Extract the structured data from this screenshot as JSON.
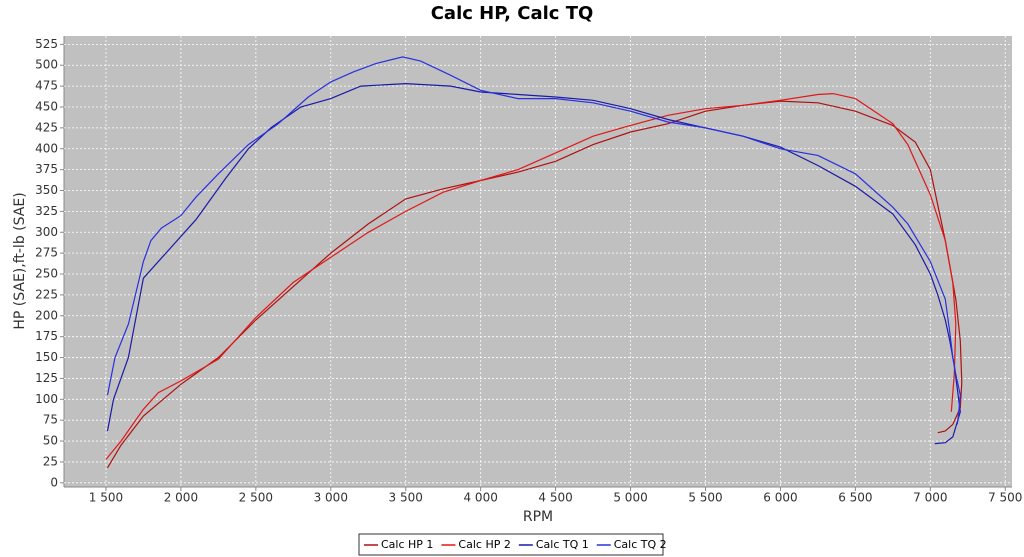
{
  "chart_data": {
    "type": "line",
    "title": "Calc HP, Calc TQ",
    "x_label": "RPM",
    "y_label": "HP (SAE),ft-lb (SAE)",
    "xlim": [
      1220,
      7545
    ],
    "ylim": [
      -5,
      535
    ],
    "grid": true,
    "xticks": [
      {
        "value": 1500,
        "label": "1 500"
      },
      {
        "value": 2000,
        "label": "2 000"
      },
      {
        "value": 2500,
        "label": "2 500"
      },
      {
        "value": 3000,
        "label": "3 000"
      },
      {
        "value": 3500,
        "label": "3 500"
      },
      {
        "value": 4000,
        "label": "4 000"
      },
      {
        "value": 4500,
        "label": "4 500"
      },
      {
        "value": 5000,
        "label": "5 000"
      },
      {
        "value": 5500,
        "label": "5 500"
      },
      {
        "value": 6000,
        "label": "6 000"
      },
      {
        "value": 6500,
        "label": "6 500"
      },
      {
        "value": 7000,
        "label": "7 000"
      },
      {
        "value": 7500,
        "label": "7 500"
      }
    ],
    "yticks": [
      0,
      25,
      50,
      75,
      100,
      125,
      150,
      175,
      200,
      225,
      250,
      275,
      300,
      325,
      350,
      375,
      400,
      425,
      450,
      475,
      500,
      525
    ],
    "series": [
      {
        "name": "Calc HP 1",
        "color": "#b01010",
        "x": [
          1510,
          1600,
          1750,
          2000,
          2250,
          2500,
          2750,
          3000,
          3250,
          3500,
          3750,
          4000,
          4250,
          4500,
          4750,
          5000,
          5250,
          5500,
          5750,
          6000,
          6250,
          6500,
          6750,
          6900,
          7000,
          7100,
          7170,
          7200,
          7210,
          7200,
          7150,
          7100,
          7050
        ],
        "values": [
          18,
          45,
          80,
          118,
          150,
          195,
          235,
          275,
          310,
          340,
          352,
          362,
          372,
          385,
          405,
          420,
          430,
          445,
          452,
          457,
          455,
          445,
          428,
          408,
          375,
          290,
          220,
          170,
          120,
          90,
          70,
          62,
          60
        ]
      },
      {
        "name": "Calc HP 2",
        "color": "#e01818",
        "x": [
          1500,
          1600,
          1750,
          1850,
          2000,
          2250,
          2500,
          2750,
          3000,
          3250,
          3500,
          3750,
          4000,
          4250,
          4500,
          4750,
          5000,
          5250,
          5500,
          5750,
          6000,
          6250,
          6350,
          6500,
          6750,
          6850,
          7000,
          7100,
          7150,
          7170,
          7160,
          7140
        ],
        "values": [
          28,
          50,
          88,
          108,
          122,
          148,
          198,
          240,
          270,
          300,
          325,
          348,
          362,
          375,
          395,
          415,
          428,
          440,
          448,
          452,
          458,
          465,
          466,
          460,
          430,
          405,
          345,
          290,
          240,
          190,
          130,
          85
        ]
      },
      {
        "name": "Calc TQ 1",
        "color": "#1a1aa8",
        "x": [
          1510,
          1550,
          1650,
          1750,
          1900,
          2100,
          2300,
          2450,
          2600,
          2800,
          3000,
          3200,
          3500,
          3800,
          4000,
          4250,
          4500,
          4750,
          5000,
          5250,
          5500,
          5750,
          6000,
          6250,
          6500,
          6750,
          6900,
          7000,
          7050,
          7100,
          7130,
          7160,
          7200,
          7150,
          7100,
          7030
        ],
        "values": [
          62,
          100,
          150,
          245,
          275,
          315,
          365,
          400,
          425,
          450,
          460,
          475,
          478,
          475,
          468,
          465,
          462,
          458,
          448,
          435,
          425,
          415,
          402,
          380,
          355,
          322,
          285,
          250,
          225,
          195,
          170,
          140,
          85,
          55,
          48,
          47
        ]
      },
      {
        "name": "Calc TQ 2",
        "color": "#2830e0",
        "x": [
          1510,
          1560,
          1650,
          1750,
          1800,
          1870,
          2000,
          2100,
          2250,
          2450,
          2650,
          2850,
          3000,
          3150,
          3300,
          3480,
          3600,
          3800,
          4000,
          4250,
          4500,
          4750,
          5000,
          5250,
          5500,
          5750,
          6000,
          6250,
          6500,
          6750,
          6850,
          7000,
          7100,
          7130,
          7150,
          7170,
          7200,
          7190,
          7180
        ],
        "values": [
          105,
          150,
          190,
          265,
          290,
          305,
          320,
          342,
          370,
          405,
          430,
          462,
          480,
          492,
          502,
          510,
          505,
          488,
          470,
          460,
          460,
          455,
          445,
          432,
          425,
          415,
          400,
          392,
          370,
          330,
          310,
          265,
          220,
          180,
          150,
          130,
          105,
          85,
          70
        ]
      }
    ]
  }
}
